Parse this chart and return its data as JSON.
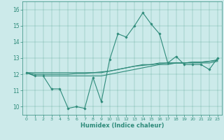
{
  "x": [
    0,
    1,
    2,
    3,
    4,
    5,
    6,
    7,
    8,
    9,
    10,
    11,
    12,
    13,
    14,
    15,
    16,
    17,
    18,
    19,
    20,
    21,
    22,
    23
  ],
  "line1": [
    12.1,
    11.9,
    11.9,
    11.1,
    11.1,
    9.9,
    10.0,
    9.9,
    11.8,
    10.3,
    12.9,
    14.5,
    14.3,
    15.0,
    15.8,
    15.1,
    14.5,
    12.7,
    13.1,
    12.6,
    12.6,
    12.6,
    12.3,
    13.0
  ],
  "line2": [
    12.1,
    11.9,
    11.9,
    11.9,
    11.9,
    11.9,
    11.9,
    11.9,
    11.9,
    11.9,
    12.0,
    12.1,
    12.2,
    12.3,
    12.4,
    12.5,
    12.6,
    12.6,
    12.7,
    12.7,
    12.7,
    12.7,
    12.7,
    12.8
  ],
  "line3": [
    12.1,
    12.1,
    12.1,
    12.1,
    12.1,
    12.1,
    12.1,
    12.1,
    12.1,
    12.1,
    12.2,
    12.3,
    12.4,
    12.5,
    12.6,
    12.6,
    12.7,
    12.7,
    12.7,
    12.7,
    12.75,
    12.75,
    12.8,
    12.85
  ],
  "line4": [
    12.1,
    12.0,
    12.0,
    12.0,
    12.0,
    12.0,
    12.05,
    12.05,
    12.1,
    12.15,
    12.2,
    12.3,
    12.4,
    12.5,
    12.55,
    12.6,
    12.65,
    12.7,
    12.7,
    12.7,
    12.75,
    12.75,
    12.8,
    12.9
  ],
  "color": "#2e8b7a",
  "bg_color": "#cceaea",
  "xlabel": "Humidex (Indice chaleur)",
  "ylim": [
    9.5,
    16.5
  ],
  "xlim": [
    -0.5,
    23.5
  ],
  "yticks": [
    10,
    11,
    12,
    13,
    14,
    15,
    16
  ],
  "xticks": [
    0,
    1,
    2,
    3,
    4,
    5,
    6,
    7,
    8,
    9,
    10,
    11,
    12,
    13,
    14,
    15,
    16,
    17,
    18,
    19,
    20,
    21,
    22,
    23
  ],
  "xlabel_fontsize": 6.0,
  "ytick_fontsize": 5.5,
  "xtick_fontsize": 4.5,
  "linewidth": 0.8,
  "markersize": 1.8
}
